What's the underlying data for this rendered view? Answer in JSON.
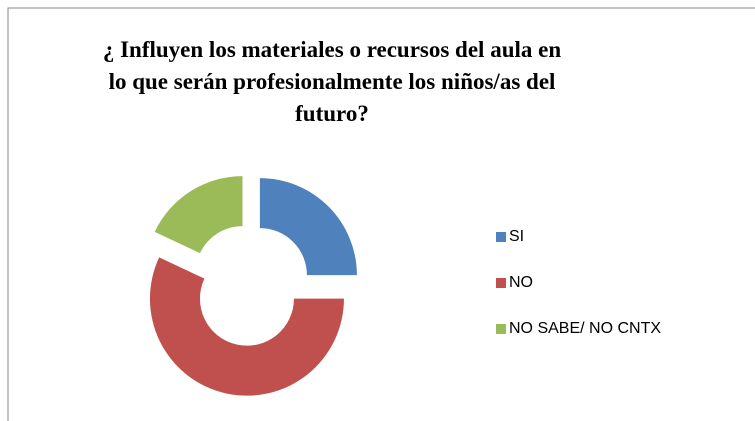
{
  "chart_data": {
    "type": "donut",
    "title": "¿ Influyen los materiales o recursos del aula en lo que serán profesionalmente los niños/as del futuro?",
    "title_lines": [
      "¿ Influyen los materiales o recursos del aula en",
      "lo que serán profesionalmente los niños/as del",
      "futuro?"
    ],
    "categories": [
      "SI",
      "NO",
      "NO SABE/ NO CNTX"
    ],
    "values": [
      25,
      57,
      18
    ],
    "colors": [
      "#4f81bd",
      "#c0504d",
      "#9bbb59"
    ],
    "legend": "right"
  }
}
